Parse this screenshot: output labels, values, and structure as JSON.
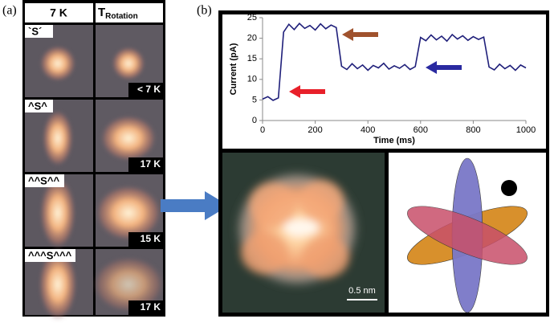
{
  "panel_a": {
    "label": "(a)",
    "header_left": "7 K",
    "header_right_main": "T",
    "header_right_sub": "Rotation",
    "rows": [
      {
        "symbol": "`S´",
        "temperature": "< 7 K"
      },
      {
        "symbol": "^S^",
        "temperature": "17 K"
      },
      {
        "symbol": "^^S^^",
        "temperature": "15 K"
      },
      {
        "symbol": "^^^S^^^",
        "temperature": "17 K"
      }
    ]
  },
  "panel_b": {
    "label": "(b)",
    "scale_bar": "0.5 nm"
  },
  "chart_data": {
    "type": "line",
    "xlabel": "Time (ms)",
    "ylabel": "Current (pA)",
    "x": [
      0,
      20,
      40,
      60,
      80,
      100,
      120,
      140,
      160,
      180,
      200,
      220,
      240,
      260,
      280,
      300,
      320,
      340,
      360,
      380,
      400,
      420,
      440,
      460,
      480,
      500,
      520,
      540,
      560,
      580,
      600,
      620,
      640,
      660,
      680,
      700,
      720,
      740,
      760,
      780,
      800,
      820,
      840,
      860,
      880,
      900,
      920,
      940,
      960,
      980,
      1000
    ],
    "series": [
      {
        "name": "Current",
        "color": "#1f1f7a",
        "values": [
          5.2,
          5.8,
          4.9,
          5.5,
          21.5,
          23.4,
          22.1,
          23.6,
          22.4,
          23.1,
          22.0,
          23.5,
          22.3,
          23.2,
          22.6,
          13.2,
          12.4,
          13.8,
          12.6,
          13.5,
          12.2,
          13.4,
          12.8,
          13.9,
          12.5,
          13.3,
          12.7,
          13.6,
          12.4,
          13.1,
          20.2,
          19.4,
          20.8,
          19.6,
          20.5,
          19.3,
          20.9,
          19.8,
          20.6,
          19.5,
          20.4,
          19.7,
          20.3,
          13.0,
          12.3,
          13.7,
          12.6,
          13.4,
          12.2,
          13.5,
          12.8
        ]
      }
    ],
    "xlim": [
      0,
      1000
    ],
    "xticks": [
      0,
      200,
      400,
      600,
      800,
      1000
    ],
    "ylim": [
      0,
      25
    ],
    "yticks": [
      0,
      5,
      10,
      15,
      20,
      25
    ],
    "grid": false
  }
}
